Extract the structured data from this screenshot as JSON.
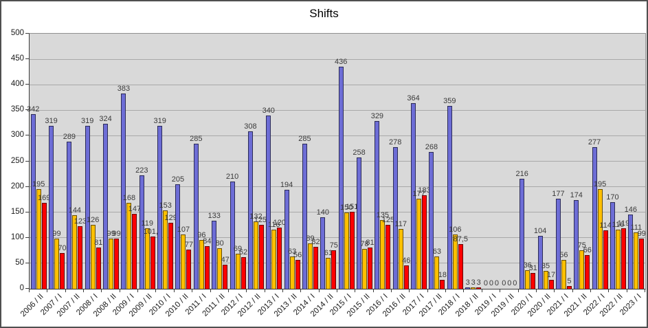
{
  "chart_data": {
    "type": "bar",
    "title": "Shifts",
    "xlabel": "",
    "ylabel": "",
    "ylim": [
      0,
      500
    ],
    "ytick_step": 50,
    "grid": "horizontal",
    "legend": "none",
    "plot_bg_color": "#d9d9d9",
    "grid_color": "#a8a8a8",
    "categories": [
      "2006 / II",
      "2007 / I",
      "2007 / II",
      "2008 / I",
      "2008 / II",
      "2009 / I",
      "2009 / II",
      "2010 / I",
      "2010 / II",
      "2011 / I",
      "2011 / II",
      "2012 / I",
      "2012 / II",
      "2013 / I",
      "2013 / II",
      "2014 / I",
      "2014 / II",
      "2015 / I",
      "2015 / II",
      "2016 / I",
      "2016 / II",
      "2017 / I",
      "2017 / II",
      "2018 / I",
      "2018 / II",
      "2019 / I",
      "2019 / II",
      "2020 / I",
      "2020 / II",
      "2021 / I",
      "2021 / II",
      "2022 / I",
      "2022 / II",
      "2023 / I"
    ],
    "series": [
      {
        "name": "blue",
        "color": "#6d6dd6",
        "values": [
          342,
          319,
          289,
          319,
          324,
          383,
          223,
          319,
          205,
          285,
          133,
          210,
          308,
          340,
          194,
          285,
          140,
          436,
          258,
          329,
          278,
          364,
          268,
          359,
          3,
          0,
          0,
          216,
          104,
          177,
          174,
          277,
          170,
          146
        ],
        "labels": [
          "342",
          "319",
          "289",
          "319",
          "324",
          "383",
          "223",
          "319",
          "205",
          "285",
          "133",
          "210",
          "308",
          "340",
          "194",
          "285",
          "140",
          "436",
          "258",
          "329",
          "278",
          "364",
          "268",
          "359",
          "3",
          "0",
          "0",
          "216",
          "104",
          "177",
          "174",
          "277",
          "170",
          "146"
        ]
      },
      {
        "name": "yellow",
        "color": "#ffc000",
        "values": [
          195,
          99,
          144,
          126,
          99,
          168,
          119,
          153,
          107,
          96,
          80,
          69,
          132,
          116,
          63,
          89,
          61,
          150,
          78,
          135,
          117,
          177,
          63,
          106,
          3,
          0,
          0,
          36,
          35,
          56,
          75,
          195,
          116,
          111
        ],
        "labels": [
          "195",
          "99",
          "144",
          "126",
          "99",
          "168",
          "119",
          "153",
          "107",
          "96",
          "80",
          "69",
          "132",
          "116",
          "63",
          "89",
          "61",
          "150",
          "78",
          "135",
          "117",
          "177",
          "63",
          "106",
          "3",
          "0",
          "0",
          "36",
          "35",
          "56",
          "75",
          "195",
          "116",
          "111"
        ]
      },
      {
        "name": "red",
        "color": "#fe0000",
        "values": [
          169,
          70,
          123,
          81,
          99,
          147,
          101.9,
          129,
          77,
          84,
          47,
          62,
          125,
          120,
          56,
          82,
          75,
          151,
          81,
          125,
          46,
          183,
          18,
          87.5,
          3,
          0,
          0,
          31,
          17,
          5,
          66,
          114,
          119,
          99
        ],
        "labels": [
          "169",
          "70",
          "123",
          "81",
          "99",
          "147",
          "101,9",
          "129",
          "77",
          "84",
          "47",
          "62",
          "125,",
          "120",
          "56",
          "82",
          "75",
          "151",
          "81",
          "125",
          "46",
          "183",
          "18",
          "87,5",
          "3",
          "0",
          "0",
          "31",
          "17",
          "5",
          "66",
          "114",
          "119",
          "99"
        ]
      }
    ]
  }
}
